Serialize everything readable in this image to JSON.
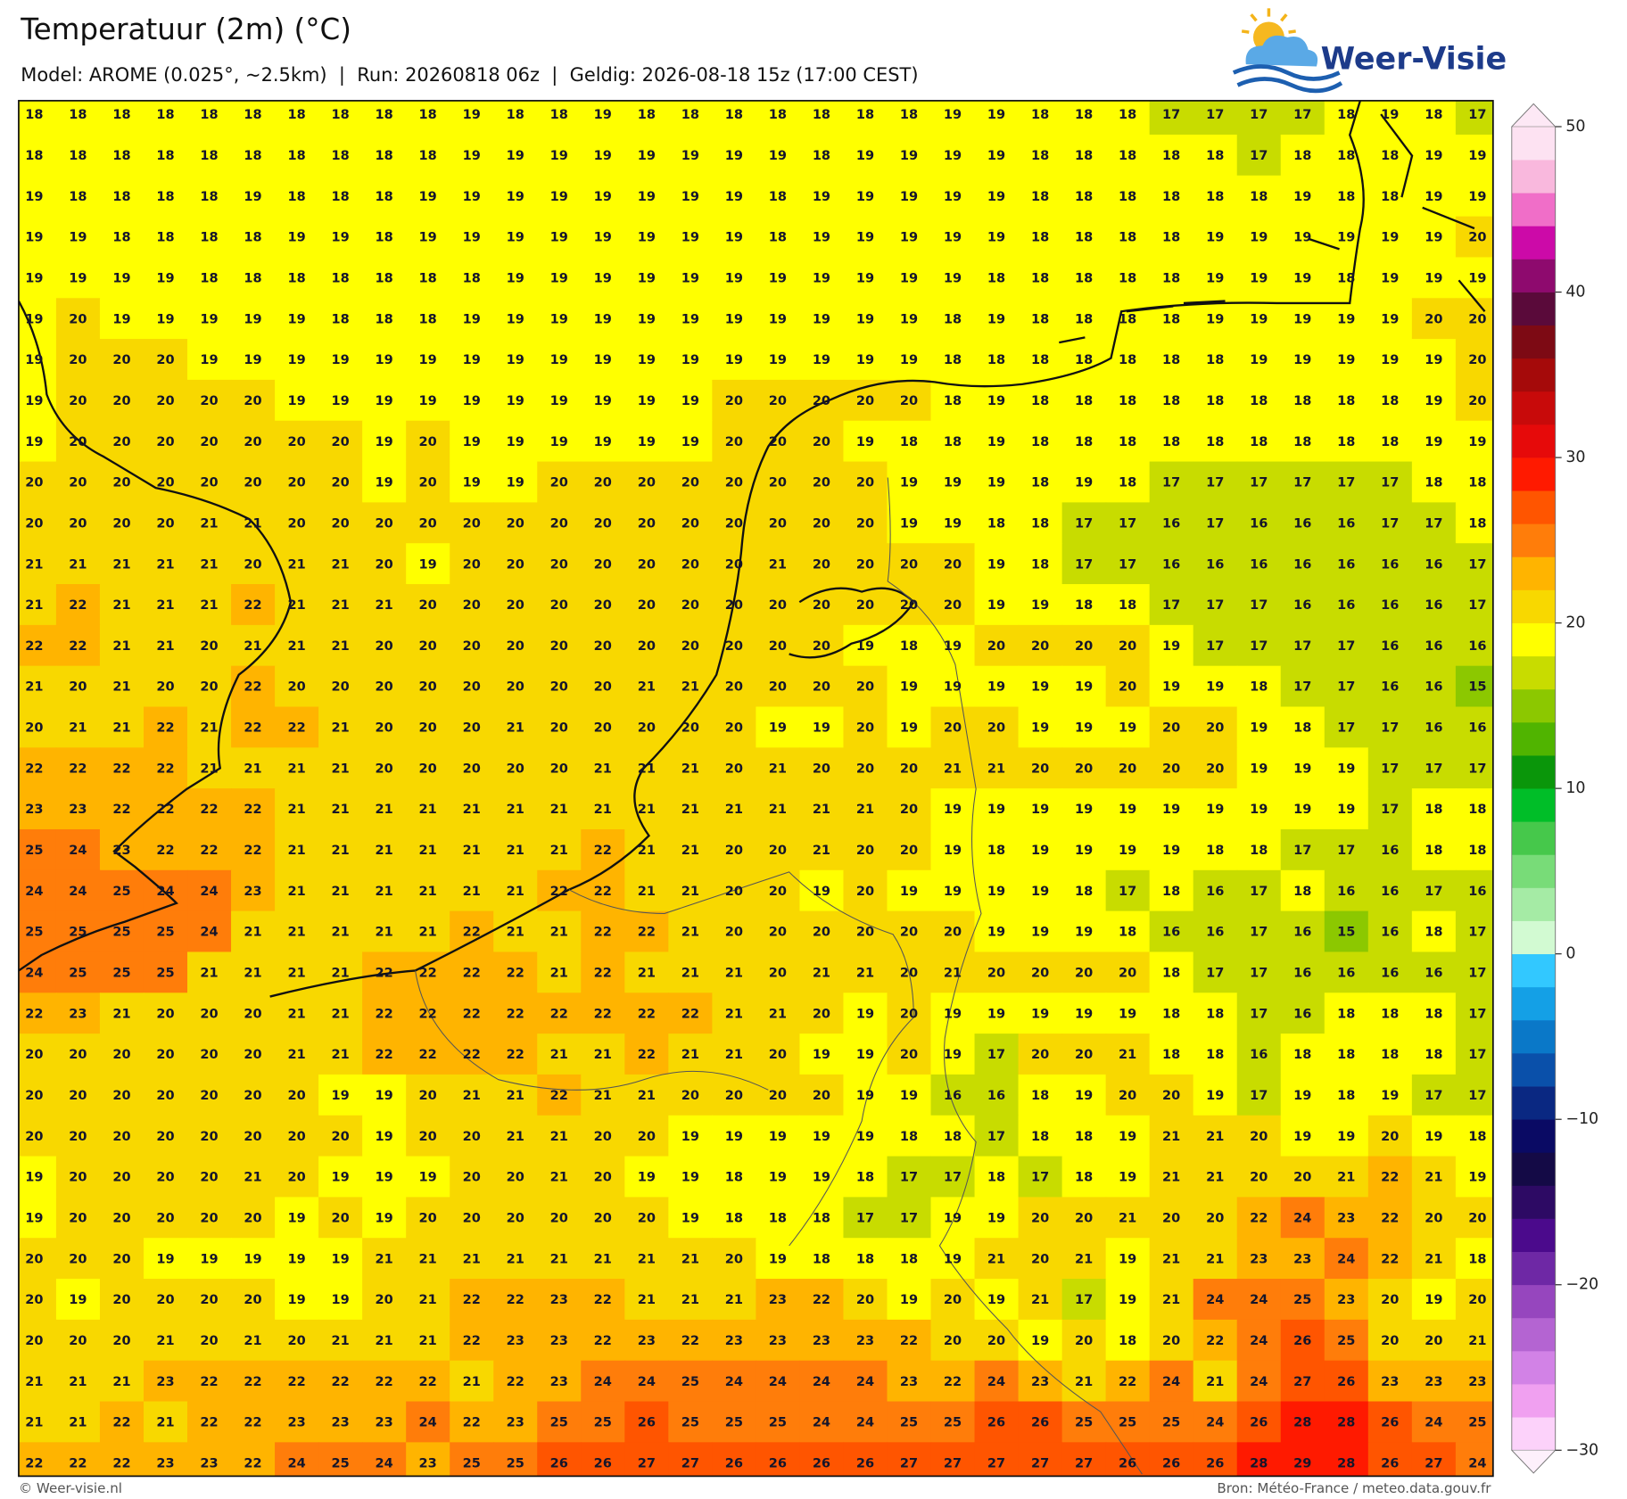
{
  "title": "Temperatuur (2m) (°C)",
  "subtitle": "Model: AROME (0.025°, ~2.5km)  |  Run: 20260818 06z  |  Geldig: 2026-08-18 15z (17:00 CEST)",
  "logo": "Weer-Visie",
  "footer_left": "© Weer-visie.nl",
  "footer_right": "Bron: Météo-France / meteo.data.gouv.fr",
  "colorbar": {
    "lim": [
      -30,
      50
    ],
    "ticks": [
      50,
      40,
      30,
      20,
      10,
      0,
      {
        "value": -10,
        "label": "−10"
      },
      {
        "value": -20,
        "label": "−20"
      },
      {
        "value": -30,
        "label": "−30"
      }
    ],
    "colors": [
      "#fcd2fa",
      "#f0a0f0",
      "#d282e6",
      "#b464d2",
      "#9646be",
      "#6e28a5",
      "#4b0a8c",
      "#2d0a64",
      "#140a46",
      "#0a0a64",
      "#0a2882",
      "#0a50aa",
      "#0a78c8",
      "#14a0e6",
      "#32c8ff",
      "#d2fad2",
      "#a5eba5",
      "#78dc78",
      "#46c84b",
      "#00be28",
      "#0a960a",
      "#50b400",
      "#8cc800",
      "#c8dc00",
      "#ffff00",
      "#f8d800",
      "#ffb400",
      "#ff7d0a",
      "#ff5500",
      "#ff1a00",
      "#e60a0a",
      "#c80a0a",
      "#a50a0a",
      "#7d0a14",
      "#5a0a3a",
      "#8e0a6e",
      "#cc0aa8",
      "#f06ec8",
      "#f9b8dd",
      "#fde2f2"
    ],
    "extend_low_color": "#fdf0fb",
    "extend_high_color": "#fde8f5"
  },
  "grid": [
    [
      18,
      18,
      18,
      18,
      18,
      18,
      18,
      18,
      18,
      18,
      19,
      18,
      18,
      19,
      18,
      18,
      18,
      18,
      18,
      18,
      18,
      19,
      19,
      18,
      18,
      18,
      17,
      17,
      17,
      17,
      18,
      19,
      18,
      17
    ],
    [
      18,
      18,
      18,
      18,
      18,
      18,
      18,
      18,
      18,
      18,
      19,
      19,
      19,
      19,
      19,
      19,
      19,
      19,
      18,
      19,
      19,
      19,
      19,
      18,
      18,
      18,
      18,
      18,
      17,
      18,
      18,
      18,
      19,
      19
    ],
    [
      19,
      18,
      18,
      18,
      18,
      19,
      18,
      18,
      18,
      19,
      19,
      19,
      19,
      19,
      19,
      19,
      19,
      18,
      19,
      19,
      19,
      19,
      19,
      18,
      18,
      18,
      18,
      18,
      18,
      19,
      18,
      18,
      19,
      19
    ],
    [
      19,
      19,
      18,
      18,
      18,
      18,
      19,
      19,
      18,
      19,
      19,
      19,
      19,
      19,
      19,
      19,
      19,
      18,
      19,
      19,
      19,
      19,
      19,
      18,
      18,
      18,
      18,
      19,
      19,
      19,
      19,
      19,
      19,
      20
    ],
    [
      19,
      19,
      19,
      19,
      18,
      18,
      18,
      18,
      18,
      18,
      18,
      19,
      19,
      19,
      19,
      19,
      19,
      19,
      19,
      19,
      19,
      19,
      18,
      18,
      18,
      18,
      18,
      19,
      19,
      19,
      18,
      19,
      19,
      19
    ],
    [
      19,
      20,
      19,
      19,
      19,
      19,
      19,
      18,
      18,
      18,
      19,
      19,
      19,
      19,
      19,
      19,
      19,
      19,
      19,
      19,
      19,
      18,
      19,
      18,
      18,
      18,
      18,
      19,
      19,
      19,
      19,
      19,
      20,
      20
    ],
    [
      19,
      20,
      20,
      20,
      19,
      19,
      19,
      19,
      19,
      19,
      19,
      19,
      19,
      19,
      19,
      19,
      19,
      19,
      19,
      19,
      19,
      18,
      18,
      18,
      18,
      18,
      18,
      18,
      19,
      19,
      19,
      19,
      19,
      20
    ],
    [
      19,
      20,
      20,
      20,
      20,
      20,
      19,
      19,
      19,
      19,
      19,
      19,
      19,
      19,
      19,
      19,
      20,
      20,
      20,
      20,
      20,
      18,
      19,
      18,
      18,
      18,
      18,
      18,
      18,
      18,
      18,
      18,
      19,
      20
    ],
    [
      19,
      20,
      20,
      20,
      20,
      20,
      20,
      20,
      19,
      20,
      19,
      19,
      19,
      19,
      19,
      19,
      20,
      20,
      20,
      19,
      18,
      18,
      19,
      18,
      18,
      18,
      18,
      18,
      18,
      18,
      18,
      18,
      19,
      19
    ],
    [
      20,
      20,
      20,
      20,
      20,
      20,
      20,
      20,
      19,
      20,
      19,
      19,
      20,
      20,
      20,
      20,
      20,
      20,
      20,
      20,
      19,
      19,
      19,
      18,
      19,
      18,
      17,
      17,
      17,
      17,
      17,
      17,
      18,
      18
    ],
    [
      20,
      20,
      20,
      20,
      21,
      21,
      20,
      20,
      20,
      20,
      20,
      20,
      20,
      20,
      20,
      20,
      20,
      20,
      20,
      20,
      19,
      19,
      18,
      18,
      17,
      17,
      16,
      17,
      16,
      16,
      16,
      17,
      17,
      18
    ],
    [
      21,
      21,
      21,
      21,
      21,
      20,
      21,
      21,
      20,
      19,
      20,
      20,
      20,
      20,
      20,
      20,
      20,
      21,
      20,
      20,
      20,
      20,
      19,
      18,
      17,
      17,
      16,
      16,
      16,
      16,
      16,
      16,
      16,
      17
    ],
    [
      21,
      22,
      21,
      21,
      21,
      22,
      21,
      21,
      21,
      20,
      20,
      20,
      20,
      20,
      20,
      20,
      20,
      20,
      20,
      20,
      20,
      20,
      19,
      19,
      18,
      18,
      17,
      17,
      17,
      16,
      16,
      16,
      16,
      17
    ],
    [
      22,
      22,
      21,
      21,
      20,
      21,
      21,
      21,
      20,
      20,
      20,
      20,
      20,
      20,
      20,
      20,
      20,
      20,
      20,
      19,
      18,
      19,
      20,
      20,
      20,
      20,
      19,
      17,
      17,
      17,
      17,
      16,
      16,
      16
    ],
    [
      21,
      20,
      21,
      20,
      20,
      22,
      20,
      20,
      20,
      20,
      20,
      20,
      20,
      20,
      21,
      21,
      20,
      20,
      20,
      20,
      19,
      19,
      19,
      19,
      19,
      20,
      19,
      19,
      18,
      17,
      17,
      16,
      16,
      15
    ],
    [
      20,
      21,
      21,
      22,
      21,
      22,
      22,
      21,
      20,
      20,
      20,
      21,
      20,
      20,
      20,
      20,
      20,
      19,
      19,
      20,
      19,
      20,
      20,
      19,
      19,
      19,
      20,
      20,
      19,
      18,
      17,
      17,
      16,
      16
    ],
    [
      22,
      22,
      22,
      22,
      21,
      21,
      21,
      21,
      20,
      20,
      20,
      20,
      20,
      21,
      21,
      21,
      20,
      21,
      20,
      20,
      20,
      21,
      21,
      20,
      20,
      20,
      20,
      20,
      19,
      19,
      19,
      17,
      17,
      17
    ],
    [
      23,
      23,
      22,
      22,
      22,
      22,
      21,
      21,
      21,
      21,
      21,
      21,
      21,
      21,
      21,
      21,
      21,
      21,
      21,
      21,
      20,
      19,
      19,
      19,
      19,
      19,
      19,
      19,
      19,
      19,
      19,
      17,
      18,
      18
    ],
    [
      25,
      24,
      23,
      22,
      22,
      22,
      21,
      21,
      21,
      21,
      21,
      21,
      21,
      22,
      21,
      21,
      20,
      20,
      21,
      20,
      20,
      19,
      18,
      19,
      19,
      19,
      19,
      18,
      18,
      17,
      17,
      16,
      18,
      18
    ],
    [
      24,
      24,
      25,
      24,
      24,
      23,
      21,
      21,
      21,
      21,
      21,
      21,
      22,
      22,
      21,
      21,
      20,
      20,
      19,
      20,
      19,
      19,
      19,
      19,
      18,
      17,
      18,
      16,
      17,
      18,
      16,
      16,
      17,
      16
    ],
    [
      25,
      25,
      25,
      25,
      24,
      21,
      21,
      21,
      21,
      21,
      22,
      21,
      21,
      22,
      22,
      21,
      20,
      20,
      20,
      20,
      20,
      20,
      19,
      19,
      19,
      18,
      16,
      16,
      17,
      16,
      15,
      16,
      18,
      17
    ],
    [
      24,
      25,
      25,
      25,
      21,
      21,
      21,
      21,
      22,
      22,
      22,
      22,
      21,
      22,
      21,
      21,
      21,
      20,
      21,
      21,
      20,
      21,
      20,
      20,
      20,
      20,
      18,
      17,
      17,
      16,
      16,
      16,
      16,
      17
    ],
    [
      22,
      23,
      21,
      20,
      20,
      20,
      21,
      21,
      22,
      22,
      22,
      22,
      22,
      22,
      22,
      22,
      21,
      21,
      20,
      19,
      20,
      19,
      19,
      19,
      19,
      19,
      18,
      18,
      17,
      16,
      18,
      18,
      18,
      17
    ],
    [
      20,
      20,
      20,
      20,
      20,
      20,
      21,
      21,
      22,
      22,
      22,
      22,
      21,
      21,
      22,
      21,
      21,
      20,
      19,
      19,
      20,
      19,
      17,
      20,
      20,
      21,
      18,
      18,
      16,
      18,
      18,
      18,
      18,
      17
    ],
    [
      20,
      20,
      20,
      20,
      20,
      20,
      20,
      19,
      19,
      20,
      21,
      21,
      22,
      21,
      21,
      20,
      20,
      20,
      20,
      19,
      19,
      16,
      16,
      18,
      19,
      20,
      20,
      19,
      17,
      19,
      18,
      19,
      17,
      17
    ],
    [
      20,
      20,
      20,
      20,
      20,
      20,
      20,
      20,
      19,
      20,
      20,
      21,
      21,
      20,
      20,
      19,
      19,
      19,
      19,
      19,
      18,
      18,
      17,
      18,
      18,
      19,
      21,
      21,
      20,
      19,
      19,
      20,
      19,
      18
    ],
    [
      19,
      20,
      20,
      20,
      20,
      21,
      20,
      19,
      19,
      19,
      20,
      20,
      21,
      20,
      19,
      19,
      18,
      19,
      19,
      18,
      17,
      17,
      18,
      17,
      18,
      19,
      21,
      21,
      20,
      20,
      21,
      22,
      21,
      19
    ],
    [
      19,
      20,
      20,
      20,
      20,
      20,
      19,
      20,
      19,
      20,
      20,
      20,
      20,
      20,
      20,
      19,
      18,
      18,
      18,
      17,
      17,
      19,
      19,
      20,
      20,
      21,
      20,
      20,
      22,
      24,
      23,
      22,
      20,
      20
    ],
    [
      20,
      20,
      20,
      19,
      19,
      19,
      19,
      19,
      21,
      21,
      21,
      21,
      21,
      21,
      21,
      21,
      20,
      19,
      18,
      18,
      18,
      19,
      21,
      20,
      21,
      19,
      21,
      21,
      23,
      23,
      24,
      22,
      21,
      18
    ],
    [
      20,
      19,
      20,
      20,
      20,
      20,
      19,
      19,
      20,
      21,
      22,
      22,
      23,
      22,
      21,
      21,
      21,
      23,
      22,
      20,
      19,
      20,
      19,
      21,
      17,
      19,
      21,
      24,
      24,
      25,
      23,
      20,
      19,
      20
    ],
    [
      20,
      20,
      20,
      21,
      20,
      21,
      20,
      21,
      21,
      21,
      22,
      23,
      23,
      22,
      23,
      22,
      23,
      23,
      23,
      23,
      22,
      20,
      20,
      19,
      20,
      18,
      20,
      22,
      24,
      26,
      25,
      20,
      20,
      21
    ],
    [
      21,
      21,
      21,
      23,
      22,
      22,
      22,
      22,
      22,
      22,
      21,
      22,
      23,
      24,
      24,
      25,
      24,
      24,
      24,
      24,
      23,
      22,
      24,
      23,
      21,
      22,
      24,
      21,
      24,
      27,
      26,
      23,
      23,
      23
    ],
    [
      21,
      21,
      22,
      21,
      22,
      22,
      23,
      23,
      23,
      24,
      22,
      23,
      25,
      25,
      26,
      25,
      25,
      25,
      24,
      24,
      25,
      25,
      26,
      26,
      25,
      25,
      25,
      24,
      26,
      28,
      28,
      26,
      24,
      25
    ],
    [
      22,
      22,
      22,
      23,
      23,
      22,
      24,
      25,
      24,
      23,
      25,
      25,
      26,
      26,
      27,
      27,
      26,
      26,
      26,
      26,
      27,
      27,
      27,
      27,
      27,
      26,
      26,
      26,
      28,
      29,
      28,
      26,
      27,
      24
    ]
  ]
}
